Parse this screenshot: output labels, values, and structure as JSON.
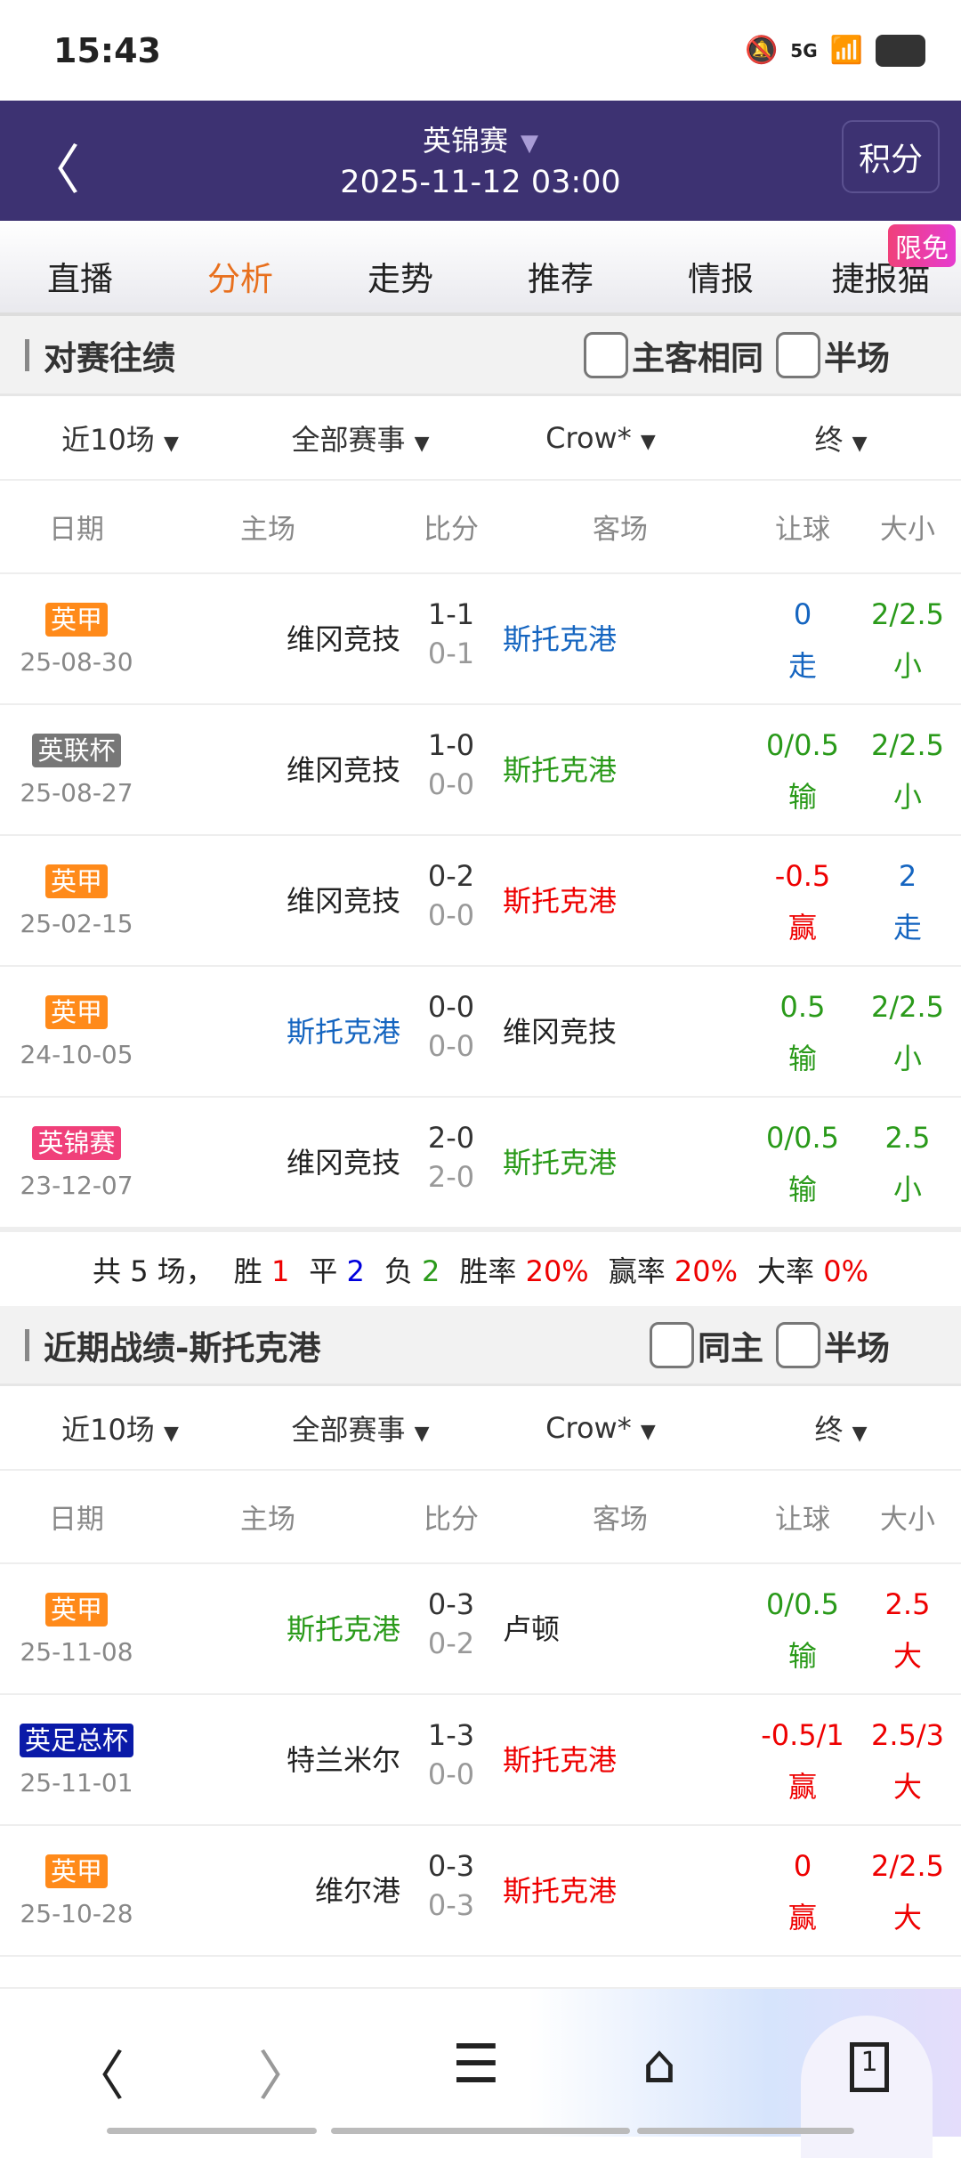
{
  "status": {
    "time": "15:43",
    "network": "5G"
  },
  "header": {
    "title": "英锦赛",
    "datetime": "2025-11-12 03:00",
    "standings": "积分"
  },
  "tabs": [
    {
      "label": "直播"
    },
    {
      "label": "分析"
    },
    {
      "label": "走势"
    },
    {
      "label": "推荐"
    },
    {
      "label": "情报"
    },
    {
      "label": "捷报猫"
    }
  ],
  "free_badge": "限免",
  "h2h": {
    "title": "对赛往绩",
    "check1": "主客相同",
    "check2": "半场",
    "filters": [
      "近10场",
      "全部赛事",
      "Crow*",
      "终"
    ],
    "columns": [
      "日期",
      "主场",
      "比分",
      "客场",
      "让球",
      "大小"
    ],
    "rows": [
      {
        "league": "英甲",
        "league_color": "#ff8a1a",
        "date": "25-08-30",
        "home": "维冈竞技",
        "score": "1-1",
        "half": "0-1",
        "away": "斯托克港",
        "hc": "0",
        "hc_res": "走",
        "ou": "2/2.5",
        "ou_res": "小",
        "away_cls": "blue",
        "home_cls": "",
        "hc_cls": "blue",
        "ou_cls": "green"
      },
      {
        "league": "英联杯",
        "league_color": "#777777",
        "date": "25-08-27",
        "home": "维冈竞技",
        "score": "1-0",
        "half": "0-0",
        "away": "斯托克港",
        "hc": "0/0.5",
        "hc_res": "输",
        "ou": "2/2.5",
        "ou_res": "小",
        "away_cls": "green",
        "home_cls": "",
        "hc_cls": "green",
        "ou_cls": "green"
      },
      {
        "league": "英甲",
        "league_color": "#ff8a1a",
        "date": "25-02-15",
        "home": "维冈竞技",
        "score": "0-2",
        "half": "0-0",
        "away": "斯托克港",
        "hc": "-0.5",
        "hc_res": "赢",
        "ou": "2",
        "ou_res": "走",
        "away_cls": "red",
        "home_cls": "",
        "hc_cls": "red",
        "ou_cls": "blue"
      },
      {
        "league": "英甲",
        "league_color": "#ff8a1a",
        "date": "24-10-05",
        "home": "斯托克港",
        "score": "0-0",
        "half": "0-0",
        "away": "维冈竞技",
        "hc": "0.5",
        "hc_res": "输",
        "ou": "2/2.5",
        "ou_res": "小",
        "away_cls": "",
        "home_cls": "blue",
        "hc_cls": "green",
        "ou_cls": "green"
      },
      {
        "league": "英锦赛",
        "league_color": "#f0407a",
        "date": "23-12-07",
        "home": "维冈竞技",
        "score": "2-0",
        "half": "2-0",
        "away": "斯托克港",
        "hc": "0/0.5",
        "hc_res": "输",
        "ou": "2.5",
        "ou_res": "小",
        "away_cls": "green",
        "home_cls": "",
        "hc_cls": "green",
        "ou_cls": "green"
      }
    ],
    "summary": {
      "total": "共 5 场，",
      "win_l": "胜",
      "win": "1",
      "draw_l": "平",
      "draw": "2",
      "loss_l": "负",
      "loss": "2",
      "wr_l": "胜率",
      "wr": "20%",
      "ar_l": "赢率",
      "ar": "20%",
      "or_l": "大率",
      "or": "0%"
    }
  },
  "recent": {
    "title": "近期战绩-斯托克港",
    "check1": "同主",
    "check2": "半场",
    "filters": [
      "近10场",
      "全部赛事",
      "Crow*",
      "终"
    ],
    "columns": [
      "日期",
      "主场",
      "比分",
      "客场",
      "让球",
      "大小"
    ],
    "rows": [
      {
        "league": "英甲",
        "league_color": "#ff8a1a",
        "date": "25-11-08",
        "home": "斯托克港",
        "score": "0-3",
        "half": "0-2",
        "away": "卢顿",
        "hc": "0/0.5",
        "hc_res": "输",
        "ou": "2.5",
        "ou_res": "大",
        "away_cls": "",
        "home_cls": "green",
        "hc_cls": "green",
        "ou_cls": "red"
      },
      {
        "league": "英足总杯",
        "league_color": "#0a1aa8",
        "date": "25-11-01",
        "home": "特兰米尔",
        "score": "1-3",
        "half": "0-0",
        "away": "斯托克港",
        "hc": "-0.5/1",
        "hc_res": "赢",
        "ou": "2.5/3",
        "ou_res": "大",
        "away_cls": "red",
        "home_cls": "",
        "hc_cls": "red",
        "ou_cls": "red"
      },
      {
        "league": "英甲",
        "league_color": "#ff8a1a",
        "date": "25-10-28",
        "home": "维尔港",
        "score": "0-3",
        "half": "0-3",
        "away": "斯托克港",
        "hc": "0",
        "hc_res": "赢",
        "ou": "2/2.5",
        "ou_res": "大",
        "away_cls": "red",
        "home_cls": "",
        "hc_cls": "red",
        "ou_cls": "red"
      }
    ]
  },
  "bottom_nav": {
    "tab_count": "1"
  }
}
